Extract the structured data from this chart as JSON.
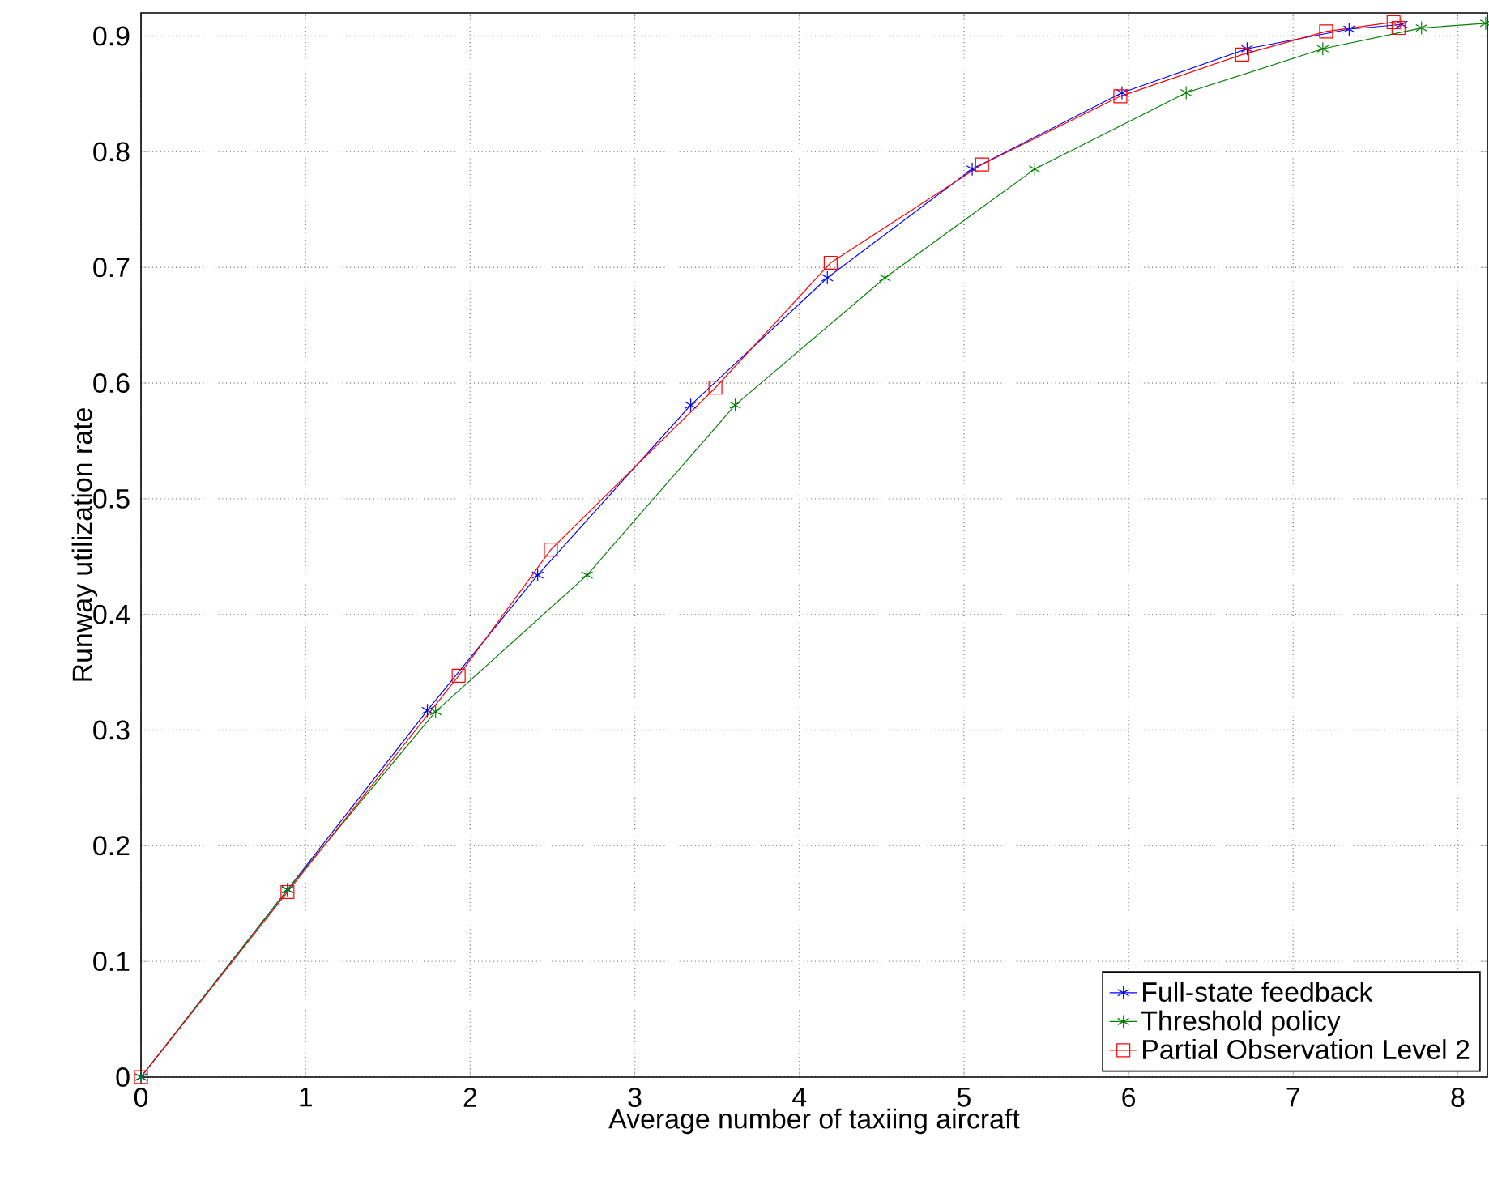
{
  "chart_data": {
    "type": "line",
    "xlabel": "Average number of taxiing aircraft",
    "ylabel": "Runway utilization rate",
    "xlim": [
      0,
      8.18
    ],
    "ylim": [
      0,
      0.92
    ],
    "xticks": [
      0,
      1,
      2,
      3,
      4,
      5,
      6,
      7,
      8
    ],
    "yticks": [
      0,
      0.1,
      0.2,
      0.3,
      0.4,
      0.5,
      0.6,
      0.7,
      0.8,
      0.9
    ],
    "grid": true,
    "legend": "bottom right",
    "line_style": "solid",
    "series": [
      {
        "name": "Full-state feedback",
        "color": "#0000ff",
        "marker": "cross",
        "x": [
          0,
          0.89,
          1.74,
          2.41,
          3.34,
          4.17,
          5.05,
          5.96,
          6.72,
          7.34,
          7.66
        ],
        "values": [
          0,
          0.162,
          0.317,
          0.434,
          0.581,
          0.691,
          0.785,
          0.851,
          0.889,
          0.906,
          0.91
        ]
      },
      {
        "name": "Threshold policy",
        "color": "#008000",
        "marker": "cross",
        "x": [
          0,
          0.89,
          1.79,
          2.71,
          3.61,
          4.52,
          5.43,
          6.35,
          7.18,
          7.78,
          8.17
        ],
        "values": [
          0,
          0.162,
          0.316,
          0.434,
          0.581,
          0.691,
          0.785,
          0.851,
          0.889,
          0.907,
          0.911
        ]
      },
      {
        "name": "Partial Observation Level 2",
        "color": "#ff0000",
        "marker": "square",
        "x": [
          0,
          0.89,
          1.93,
          2.49,
          3.49,
          4.19,
          5.11,
          5.95,
          6.69,
          7.2,
          7.61,
          7.64
        ],
        "values": [
          0,
          0.16,
          0.347,
          0.456,
          0.596,
          0.704,
          0.789,
          0.848,
          0.884,
          0.904,
          0.912,
          0.907
        ]
      }
    ]
  }
}
